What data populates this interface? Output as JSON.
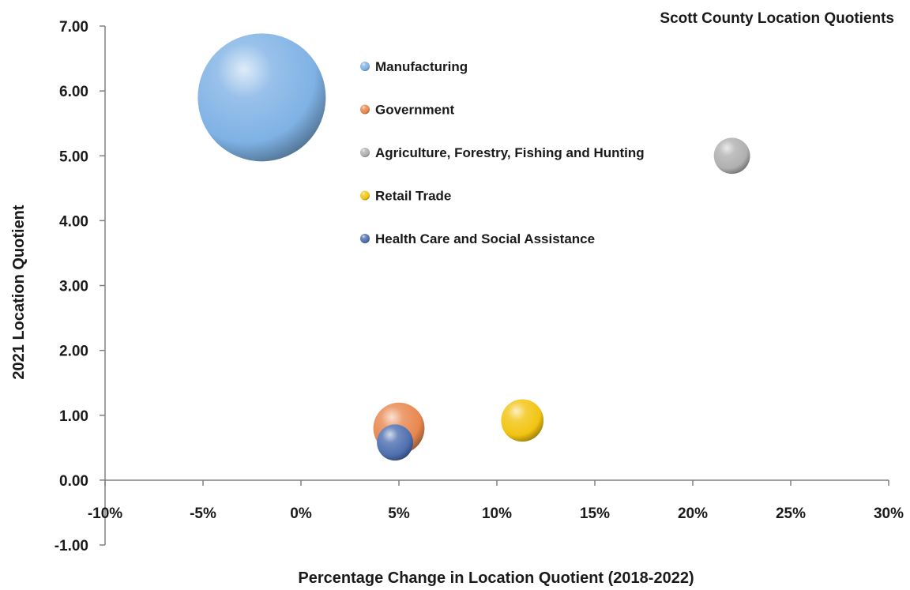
{
  "chart_data": {
    "type": "bubble",
    "title": "Scott County Location Quotients",
    "xlabel": "Percentage Change in Location Quotient (2018-2022)",
    "ylabel": "2021 Location Quotient",
    "xlim": [
      -0.1,
      0.3
    ],
    "ylim": [
      -1.0,
      7.0
    ],
    "x_ticks": [
      "-10%",
      "-5%",
      "0%",
      "5%",
      "10%",
      "15%",
      "20%",
      "25%",
      "30%"
    ],
    "x_tick_values": [
      -0.1,
      -0.05,
      0.0,
      0.05,
      0.1,
      0.15,
      0.2,
      0.25,
      0.3
    ],
    "y_ticks": [
      "-1.00",
      "0.00",
      "1.00",
      "2.00",
      "3.00",
      "4.00",
      "5.00",
      "6.00",
      "7.00"
    ],
    "y_tick_values": [
      -1,
      0,
      1,
      2,
      3,
      4,
      5,
      6,
      7
    ],
    "legend_position": "top-center",
    "grid": false,
    "series": [
      {
        "name": "Manufacturing",
        "x": -0.02,
        "y": 5.9,
        "size": 1.0,
        "color": "#7fb2e5"
      },
      {
        "name": "Government",
        "x": 0.05,
        "y": 0.8,
        "size": 0.16,
        "color": "#e8874f"
      },
      {
        "name": "Agriculture, Forestry, Fishing and Hunting",
        "x": 0.22,
        "y": 5.0,
        "size": 0.08,
        "color": "#b0b0b0"
      },
      {
        "name": "Retail Trade",
        "x": 0.113,
        "y": 0.92,
        "size": 0.11,
        "color": "#f2c411"
      },
      {
        "name": "Health Care and Social Assistance",
        "x": 0.048,
        "y": 0.58,
        "size": 0.08,
        "color": "#4f6fb0"
      }
    ]
  }
}
